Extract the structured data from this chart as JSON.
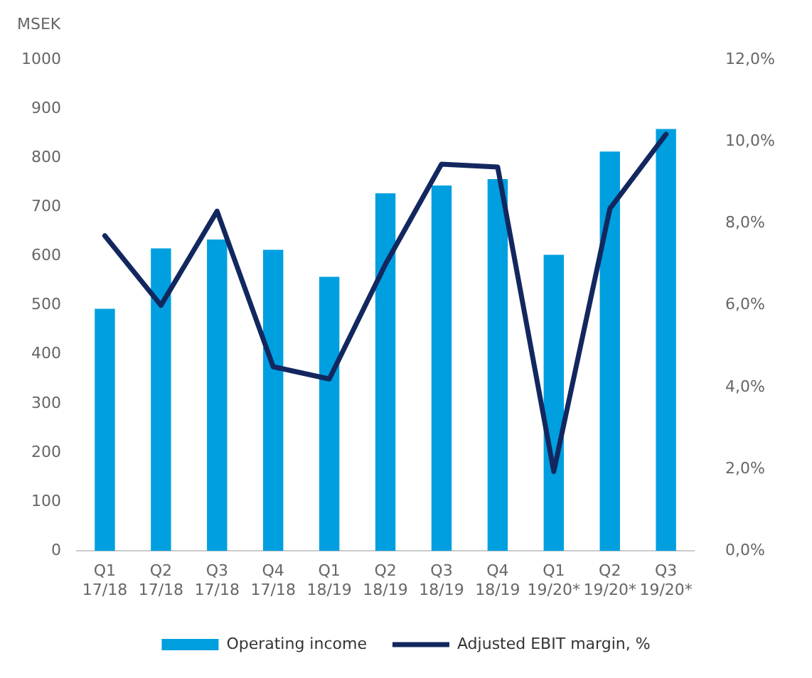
{
  "chart_data": {
    "type": "bar",
    "ylabel": "MSEK",
    "categories": [
      "Q1 17/18",
      "Q2 17/18",
      "Q3 17/18",
      "Q4 17/18",
      "Q1 18/19",
      "Q2 18/19",
      "Q3 18/19",
      "Q4 18/19",
      "Q1 19/20*",
      "Q2 19/20*",
      "Q3 19/20*"
    ],
    "series": [
      {
        "name": "Operating income",
        "color": "#009fdf",
        "values": [
          493,
          616,
          634,
          613,
          558,
          728,
          744,
          757,
          603,
          813,
          859
        ]
      },
      {
        "name": "Adjusted EBIT margin, %",
        "type": "line",
        "axis": "y2",
        "color": "#13275f",
        "values": [
          7.7,
          6.0,
          8.3,
          4.5,
          4.2,
          7.0,
          9.45,
          9.38,
          1.94,
          8.36,
          10.18
        ]
      }
    ],
    "ylim": [
      0,
      1000
    ],
    "yticks": [
      0,
      100,
      200,
      300,
      400,
      500,
      600,
      700,
      800,
      900,
      1000
    ],
    "y2lim": [
      0,
      12
    ],
    "y2ticks": [
      {
        "value": 0,
        "label": "0,0%"
      },
      {
        "value": 2,
        "label": "2,0%"
      },
      {
        "value": 4,
        "label": "4,0%"
      },
      {
        "value": 6,
        "label": "6,0%"
      },
      {
        "value": 8,
        "label": "8,0%"
      },
      {
        "value": 10,
        "label": "10,0%"
      },
      {
        "value": 12,
        "label": "12,0%"
      }
    ],
    "grid": false,
    "legend": "bottom",
    "marker": "none",
    "line_style": "solid"
  }
}
